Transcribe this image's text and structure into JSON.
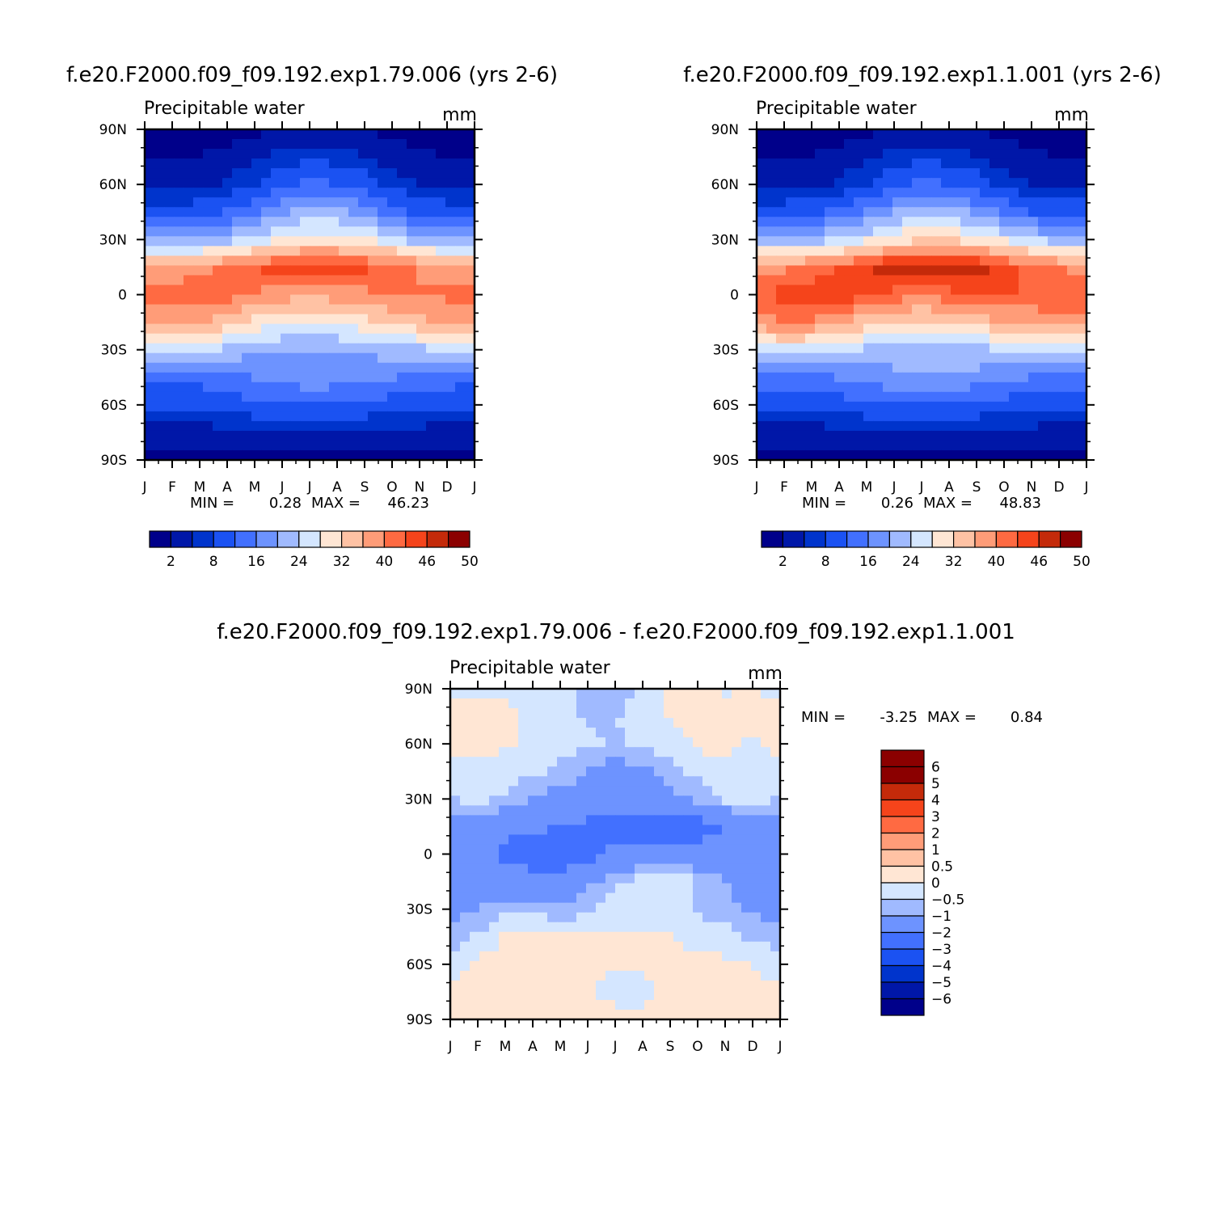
{
  "chart_data": [
    {
      "type": "heatmap",
      "title": "f.e20.F2000.f09_f09.192.exp1.79.006 (yrs 2-6)",
      "subtitle": "Precipitable water",
      "units": "mm",
      "x_ticks": [
        "J",
        "F",
        "M",
        "A",
        "M",
        "J",
        "J",
        "A",
        "S",
        "O",
        "N",
        "D",
        "J"
      ],
      "y_ticks": [
        "90N",
        "60N",
        "30N",
        "0",
        "30S",
        "60S",
        "90S"
      ],
      "min_label": "MIN =",
      "min_value": "0.28",
      "max_label": "MAX =",
      "max_value": "46.23",
      "levels": [
        2,
        5,
        8,
        12,
        16,
        20,
        24,
        28,
        32,
        36,
        40,
        43,
        46,
        48,
        50
      ],
      "colorbar_labels": [
        "2",
        "8",
        "16",
        "24",
        "32",
        "40",
        "46",
        "50"
      ],
      "colors": [
        "#00008a",
        "#0017a8",
        "#0034cc",
        "#1b52f2",
        "#4270ff",
        "#6d93ff",
        "#a0baff",
        "#d4e6ff",
        "#ffe6d4",
        "#ffc2a4",
        "#ff9c78",
        "#ff6a42",
        "#f5441b",
        "#c42a0a",
        "#8b0000"
      ],
      "months": [
        "J",
        "F",
        "M",
        "A",
        "M",
        "J",
        "J",
        "A",
        "S",
        "O",
        "N",
        "D",
        "J"
      ],
      "latitudes": [
        -90,
        -75,
        -60,
        -45,
        -30,
        -15,
        0,
        15,
        30,
        45,
        60,
        75,
        90
      ],
      "grid": [
        [
          1.0,
          1.0,
          1.0,
          1.0,
          1.0,
          1.0,
          1.0,
          1.0,
          1.0,
          1.0,
          1.0,
          1.0,
          1.0
        ],
        [
          3.5,
          3.6,
          3.6,
          3.8,
          3.9,
          4.0,
          4.1,
          4.0,
          3.9,
          3.8,
          3.7,
          3.6,
          3.5
        ],
        [
          8.5,
          9.0,
          9.0,
          10.0,
          11.0,
          12.0,
          12.5,
          12.0,
          11.0,
          10.0,
          9.5,
          9.0,
          8.5
        ],
        [
          13,
          13.5,
          13.5,
          14.5,
          16,
          17.5,
          18.5,
          18,
          17,
          16,
          15,
          14,
          13
        ],
        [
          24,
          25,
          24,
          23,
          21,
          20,
          20,
          20,
          21,
          22,
          23,
          24,
          24
        ],
        [
          36,
          38,
          37,
          34,
          31,
          29,
          28,
          29,
          31,
          33,
          35,
          36,
          36
        ],
        [
          41,
          42,
          43,
          42,
          40,
          38,
          37,
          38,
          39,
          40,
          40,
          41,
          41
        ],
        [
          36,
          37,
          39,
          41,
          43,
          45,
          46,
          45,
          44,
          42,
          40,
          38,
          36
        ],
        [
          19,
          19,
          20,
          22,
          25,
          28,
          30,
          30,
          28,
          25,
          22,
          20,
          19
        ],
        [
          9,
          9,
          10,
          12,
          15,
          19,
          22,
          21,
          18,
          14,
          11,
          10,
          9
        ],
        [
          4.0,
          4.0,
          4.5,
          5.5,
          8,
          11,
          13,
          12,
          10,
          7,
          5,
          4.5,
          4.0
        ],
        [
          1.8,
          1.9,
          2.1,
          2.8,
          4,
          6,
          7,
          6.5,
          5,
          3.5,
          2.5,
          2.0,
          1.8
        ],
        [
          0.5,
          0.5,
          0.6,
          0.8,
          1.2,
          2.0,
          2.5,
          2.3,
          1.8,
          1.1,
          0.7,
          0.6,
          0.5
        ]
      ]
    },
    {
      "type": "heatmap",
      "title": "f.e20.F2000.f09_f09.192.exp1.1.001 (yrs 2-6)",
      "subtitle": "Precipitable water",
      "units": "mm",
      "x_ticks": [
        "J",
        "F",
        "M",
        "A",
        "M",
        "J",
        "J",
        "A",
        "S",
        "O",
        "N",
        "D",
        "J"
      ],
      "y_ticks": [
        "90N",
        "60N",
        "30N",
        "0",
        "30S",
        "60S",
        "90S"
      ],
      "min_label": "MIN =",
      "min_value": "0.26",
      "max_label": "MAX =",
      "max_value": "48.83",
      "levels": [
        2,
        5,
        8,
        12,
        16,
        20,
        24,
        28,
        32,
        36,
        40,
        43,
        46,
        48,
        50
      ],
      "colorbar_labels": [
        "2",
        "8",
        "16",
        "24",
        "32",
        "40",
        "46",
        "50"
      ],
      "colors": [
        "#00008a",
        "#0017a8",
        "#0034cc",
        "#1b52f2",
        "#4270ff",
        "#6d93ff",
        "#a0baff",
        "#d4e6ff",
        "#ffe6d4",
        "#ffc2a4",
        "#ff9c78",
        "#ff6a42",
        "#f5441b",
        "#c42a0a",
        "#8b0000"
      ],
      "months": [
        "J",
        "F",
        "M",
        "A",
        "M",
        "J",
        "J",
        "A",
        "S",
        "O",
        "N",
        "D",
        "J"
      ],
      "latitudes": [
        -90,
        -75,
        -60,
        -45,
        -30,
        -15,
        0,
        15,
        30,
        45,
        60,
        75,
        90
      ],
      "grid": [
        [
          1.0,
          1.0,
          1.0,
          1.0,
          1.0,
          1.0,
          1.0,
          1.0,
          1.0,
          1.0,
          1.0,
          1.0,
          1.0
        ],
        [
          3.5,
          3.6,
          3.6,
          3.8,
          3.9,
          4.0,
          4.1,
          4.0,
          3.9,
          3.8,
          3.7,
          3.6,
          3.5
        ],
        [
          8.5,
          9.0,
          9.0,
          10.0,
          11.0,
          12.0,
          12.5,
          12.0,
          11.0,
          10.0,
          9.5,
          9.0,
          8.5
        ],
        [
          14,
          14.5,
          15,
          16,
          17.5,
          19,
          20,
          19.5,
          18.5,
          17,
          16,
          15,
          14
        ],
        [
          26,
          27,
          26,
          25,
          23,
          22,
          22,
          22,
          23,
          24,
          25,
          26,
          26
        ],
        [
          38,
          40,
          40,
          37,
          34,
          32,
          31,
          32,
          34,
          36,
          37,
          38,
          38
        ],
        [
          43,
          44,
          45,
          45,
          44,
          42,
          41,
          42,
          43,
          43,
          43,
          43,
          43
        ],
        [
          38,
          39,
          41,
          43,
          46,
          48,
          48,
          48,
          47,
          45,
          42,
          40,
          38
        ],
        [
          21,
          21,
          22,
          24,
          27,
          30,
          32,
          32,
          30,
          27,
          24,
          22,
          21
        ],
        [
          10,
          10,
          11,
          13,
          16,
          20,
          23,
          22,
          19,
          15,
          12,
          11,
          10
        ],
        [
          4.0,
          4.0,
          4.5,
          5.5,
          8,
          11,
          13,
          12,
          10,
          7,
          5,
          4.5,
          4.0
        ],
        [
          1.8,
          1.9,
          2.1,
          2.8,
          4,
          6,
          7,
          6.5,
          5,
          3.5,
          2.5,
          2.0,
          1.8
        ],
        [
          0.5,
          0.5,
          0.6,
          0.8,
          1.2,
          2.0,
          2.5,
          2.3,
          1.8,
          1.1,
          0.7,
          0.6,
          0.5
        ]
      ]
    },
    {
      "type": "heatmap",
      "title": "f.e20.F2000.f09_f09.192.exp1.79.006 - f.e20.F2000.f09_f09.192.exp1.1.001",
      "subtitle": "Precipitable water",
      "units": "mm",
      "x_ticks": [
        "J",
        "F",
        "M",
        "A",
        "M",
        "J",
        "J",
        "A",
        "S",
        "O",
        "N",
        "D",
        "J"
      ],
      "y_ticks": [
        "90N",
        "60N",
        "30N",
        "0",
        "30S",
        "60S",
        "90S"
      ],
      "min_label": "MIN =",
      "min_value": "-3.25",
      "max_label": "MAX =",
      "max_value": "0.84",
      "levels": [
        -6,
        -5,
        -4,
        -3,
        -2,
        -1,
        -0.5,
        0,
        0.5,
        1,
        2,
        3,
        4,
        5,
        6
      ],
      "colorbar_labels": [
        "6",
        "5",
        "4",
        "3",
        "2",
        "1",
        "0.5",
        "0",
        "-0.5",
        "-1",
        "-2",
        "-3",
        "-4",
        "-5",
        "-6"
      ],
      "colors": [
        "#00008a",
        "#0017a8",
        "#0034cc",
        "#1b52f2",
        "#4270ff",
        "#6d93ff",
        "#a0baff",
        "#d4e6ff",
        "#ffe6d4",
        "#ffc2a4",
        "#ff9c78",
        "#ff6a42",
        "#f5441b",
        "#c42a0a",
        "#8b0000",
        "#8b0000"
      ],
      "months": [
        "J",
        "F",
        "M",
        "A",
        "M",
        "J",
        "J",
        "A",
        "S",
        "O",
        "N",
        "D",
        "J"
      ],
      "latitudes": [
        -90,
        -75,
        -60,
        -45,
        -30,
        -15,
        0,
        15,
        30,
        45,
        60,
        75,
        90
      ],
      "grid": [
        [
          0.2,
          0.2,
          0.3,
          0.2,
          0.3,
          0.2,
          0.2,
          0.2,
          0.3,
          0.3,
          0.2,
          0.2,
          0.2
        ],
        [
          0.1,
          0.2,
          0.2,
          0.1,
          0.1,
          0.1,
          -0.2,
          -0.2,
          0.1,
          0.2,
          0.2,
          0.1,
          0.1
        ],
        [
          -0.3,
          0.1,
          0.2,
          0.2,
          0.2,
          0.1,
          0.1,
          0.1,
          0.2,
          0.2,
          0.1,
          0.0,
          -0.3
        ],
        [
          -0.8,
          -0.4,
          0.1,
          0.2,
          0.2,
          0.1,
          0.1,
          0.1,
          0.0,
          -0.2,
          -0.3,
          -0.6,
          -0.8
        ],
        [
          -1.2,
          -1.0,
          -0.6,
          -0.7,
          -0.9,
          -0.6,
          -0.3,
          -0.2,
          -0.3,
          -0.6,
          -0.8,
          -1.1,
          -1.2
        ],
        [
          -1.6,
          -1.8,
          -1.6,
          -1.5,
          -1.6,
          -1.2,
          -0.6,
          -0.3,
          0.1,
          -0.6,
          -1.0,
          -1.4,
          -1.6
        ],
        [
          -1.4,
          -1.6,
          -2.2,
          -2.6,
          -2.6,
          -2.3,
          -1.8,
          -1.6,
          -1.4,
          -1.6,
          -1.8,
          -1.8,
          -1.4
        ],
        [
          -1.2,
          -1.4,
          -1.7,
          -1.8,
          -2.0,
          -2.2,
          -2.4,
          -2.6,
          -2.8,
          -2.5,
          -1.9,
          -1.4,
          -1.2
        ],
        [
          -0.6,
          -0.3,
          -0.6,
          -1.1,
          -1.3,
          -1.4,
          -1.5,
          -1.4,
          -1.2,
          -0.9,
          -0.4,
          -0.3,
          -0.6
        ],
        [
          -0.2,
          -0.2,
          -0.3,
          -0.4,
          -0.6,
          -1.1,
          -1.3,
          -1.2,
          -0.6,
          -0.3,
          -0.2,
          -0.3,
          -0.2
        ],
        [
          0.2,
          0.2,
          0.1,
          -0.2,
          -0.3,
          -0.4,
          -0.6,
          -0.4,
          -0.3,
          0.1,
          0.2,
          -0.1,
          0.2
        ],
        [
          0.2,
          0.4,
          0.2,
          -0.2,
          -0.3,
          -0.6,
          -0.5,
          -0.3,
          0.1,
          0.2,
          0.3,
          0.1,
          0.2
        ],
        [
          -0.2,
          -0.1,
          -0.2,
          -0.3,
          -0.2,
          -0.6,
          -0.9,
          -0.3,
          0.2,
          0.3,
          -0.1,
          0.1,
          -0.2
        ]
      ]
    }
  ]
}
